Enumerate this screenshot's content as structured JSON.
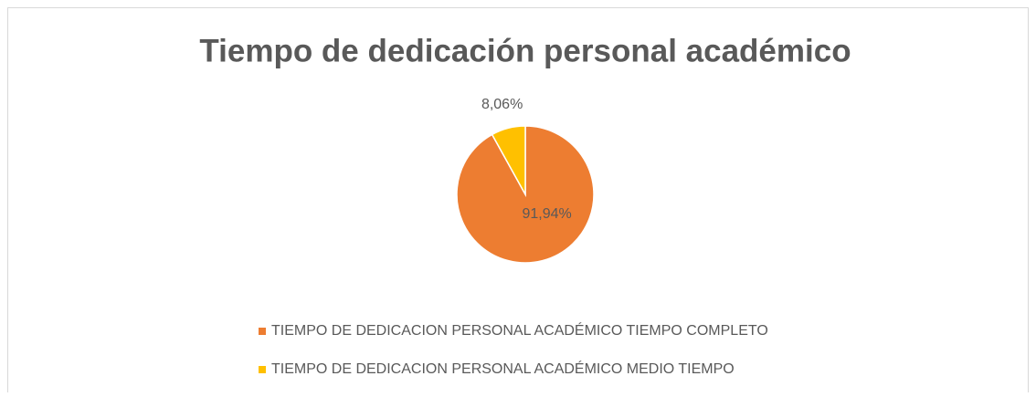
{
  "chart_data": {
    "type": "pie",
    "title": "Tiempo de dedicación personal académico",
    "categories": [
      "TIEMPO DE DEDICACION PERSONAL ACADÉMICO TIEMPO COMPLETO",
      "TIEMPO DE DEDICACION PERSONAL ACADÉMICO MEDIO TIEMPO"
    ],
    "values": [
      91.94,
      8.06
    ],
    "value_labels": [
      "91,94%",
      "8,06%"
    ],
    "colors": [
      "#ed7d31",
      "#ffc000"
    ],
    "legend": "bottom"
  }
}
